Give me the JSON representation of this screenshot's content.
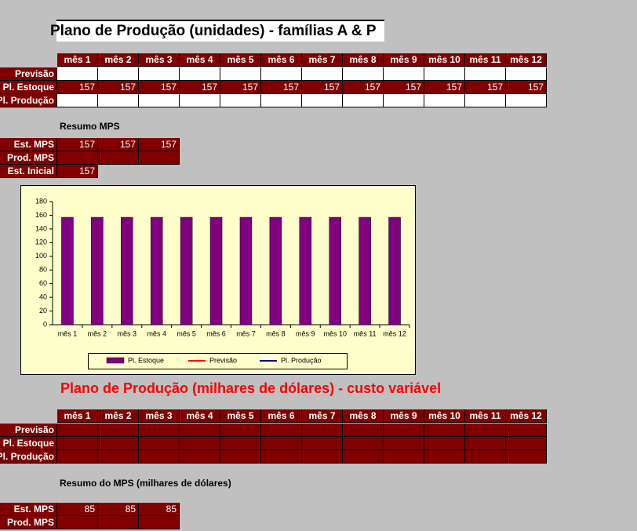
{
  "title": "Plano de Produção (unidades) - famílias A & P",
  "table1": {
    "header": [
      "mês 1",
      "mês 2",
      "mês 3",
      "mês 4",
      "mês 5",
      "mês 6",
      "mês 7",
      "mês 8",
      "mês 9",
      "mês 10",
      "mês 11",
      "mês 12"
    ],
    "rows": [
      {
        "label": "Previsão",
        "values": [
          null,
          null,
          null,
          null,
          null,
          null,
          null,
          null,
          null,
          null,
          null,
          null
        ]
      },
      {
        "label": "Pl. Estoque",
        "values": [
          157,
          157,
          157,
          157,
          157,
          157,
          157,
          157,
          157,
          157,
          157,
          157
        ]
      },
      {
        "label": "Pl. Produção",
        "values": [
          null,
          null,
          null,
          null,
          null,
          null,
          null,
          null,
          null,
          null,
          null,
          null
        ]
      }
    ]
  },
  "summary1": {
    "title": "Resumo MPS",
    "rows": [
      {
        "label": "Est. MPS",
        "values": [
          157,
          157,
          157
        ]
      },
      {
        "label": "Prod. MPS",
        "values": [
          null,
          null,
          null
        ]
      },
      {
        "label": "Est. Inicial",
        "values": [
          157
        ]
      }
    ]
  },
  "chart_data": {
    "type": "bar",
    "categories": [
      "mês 1",
      "mês 2",
      "mês 3",
      "mês 4",
      "mês 5",
      "mês 6",
      "mês 7",
      "mês 8",
      "mês 9",
      "mês 10",
      "mês 11",
      "mês 12"
    ],
    "series": [
      {
        "name": "Pl. Estoque",
        "color": "#800080",
        "type": "bar",
        "values": [
          157,
          157,
          157,
          157,
          157,
          157,
          157,
          157,
          157,
          157,
          157,
          157
        ]
      },
      {
        "name": "Previsão",
        "color": "#ff0000",
        "type": "line",
        "values": [
          null,
          null,
          null,
          null,
          null,
          null,
          null,
          null,
          null,
          null,
          null,
          null
        ]
      },
      {
        "name": "Pl. Produção",
        "color": "#000080",
        "type": "line",
        "values": [
          null,
          null,
          null,
          null,
          null,
          null,
          null,
          null,
          null,
          null,
          null,
          null
        ]
      }
    ],
    "ylim": [
      0,
      180
    ],
    "yticks": [
      0,
      20,
      40,
      60,
      80,
      100,
      120,
      140,
      160,
      180
    ],
    "legend": "bottom"
  },
  "title2": "Plano de Produção (milhares de dólares) - custo variável",
  "table2": {
    "header": [
      "mês 1",
      "mês 2",
      "mês 3",
      "mês 4",
      "mês 5",
      "mês 6",
      "mês 7",
      "mês 8",
      "mês 9",
      "mês 10",
      "mês 11",
      "mês 12"
    ],
    "rows": [
      {
        "label": "Previsão",
        "values": [
          null,
          null,
          null,
          null,
          null,
          null,
          null,
          null,
          null,
          null,
          null,
          null
        ]
      },
      {
        "label": "Pl. Estoque",
        "values": [
          null,
          null,
          null,
          null,
          null,
          null,
          null,
          null,
          null,
          null,
          null,
          null
        ]
      },
      {
        "label": "Pl. Produção",
        "values": [
          null,
          null,
          null,
          null,
          null,
          null,
          null,
          null,
          null,
          null,
          null,
          null
        ]
      }
    ]
  },
  "summary2": {
    "title": "Resumo do MPS (milhares de dólares)",
    "rows": [
      {
        "label": "Est. MPS",
        "values": [
          85,
          85,
          85
        ]
      },
      {
        "label": "Prod. MPS",
        "values": [
          null,
          null,
          null
        ]
      }
    ]
  }
}
